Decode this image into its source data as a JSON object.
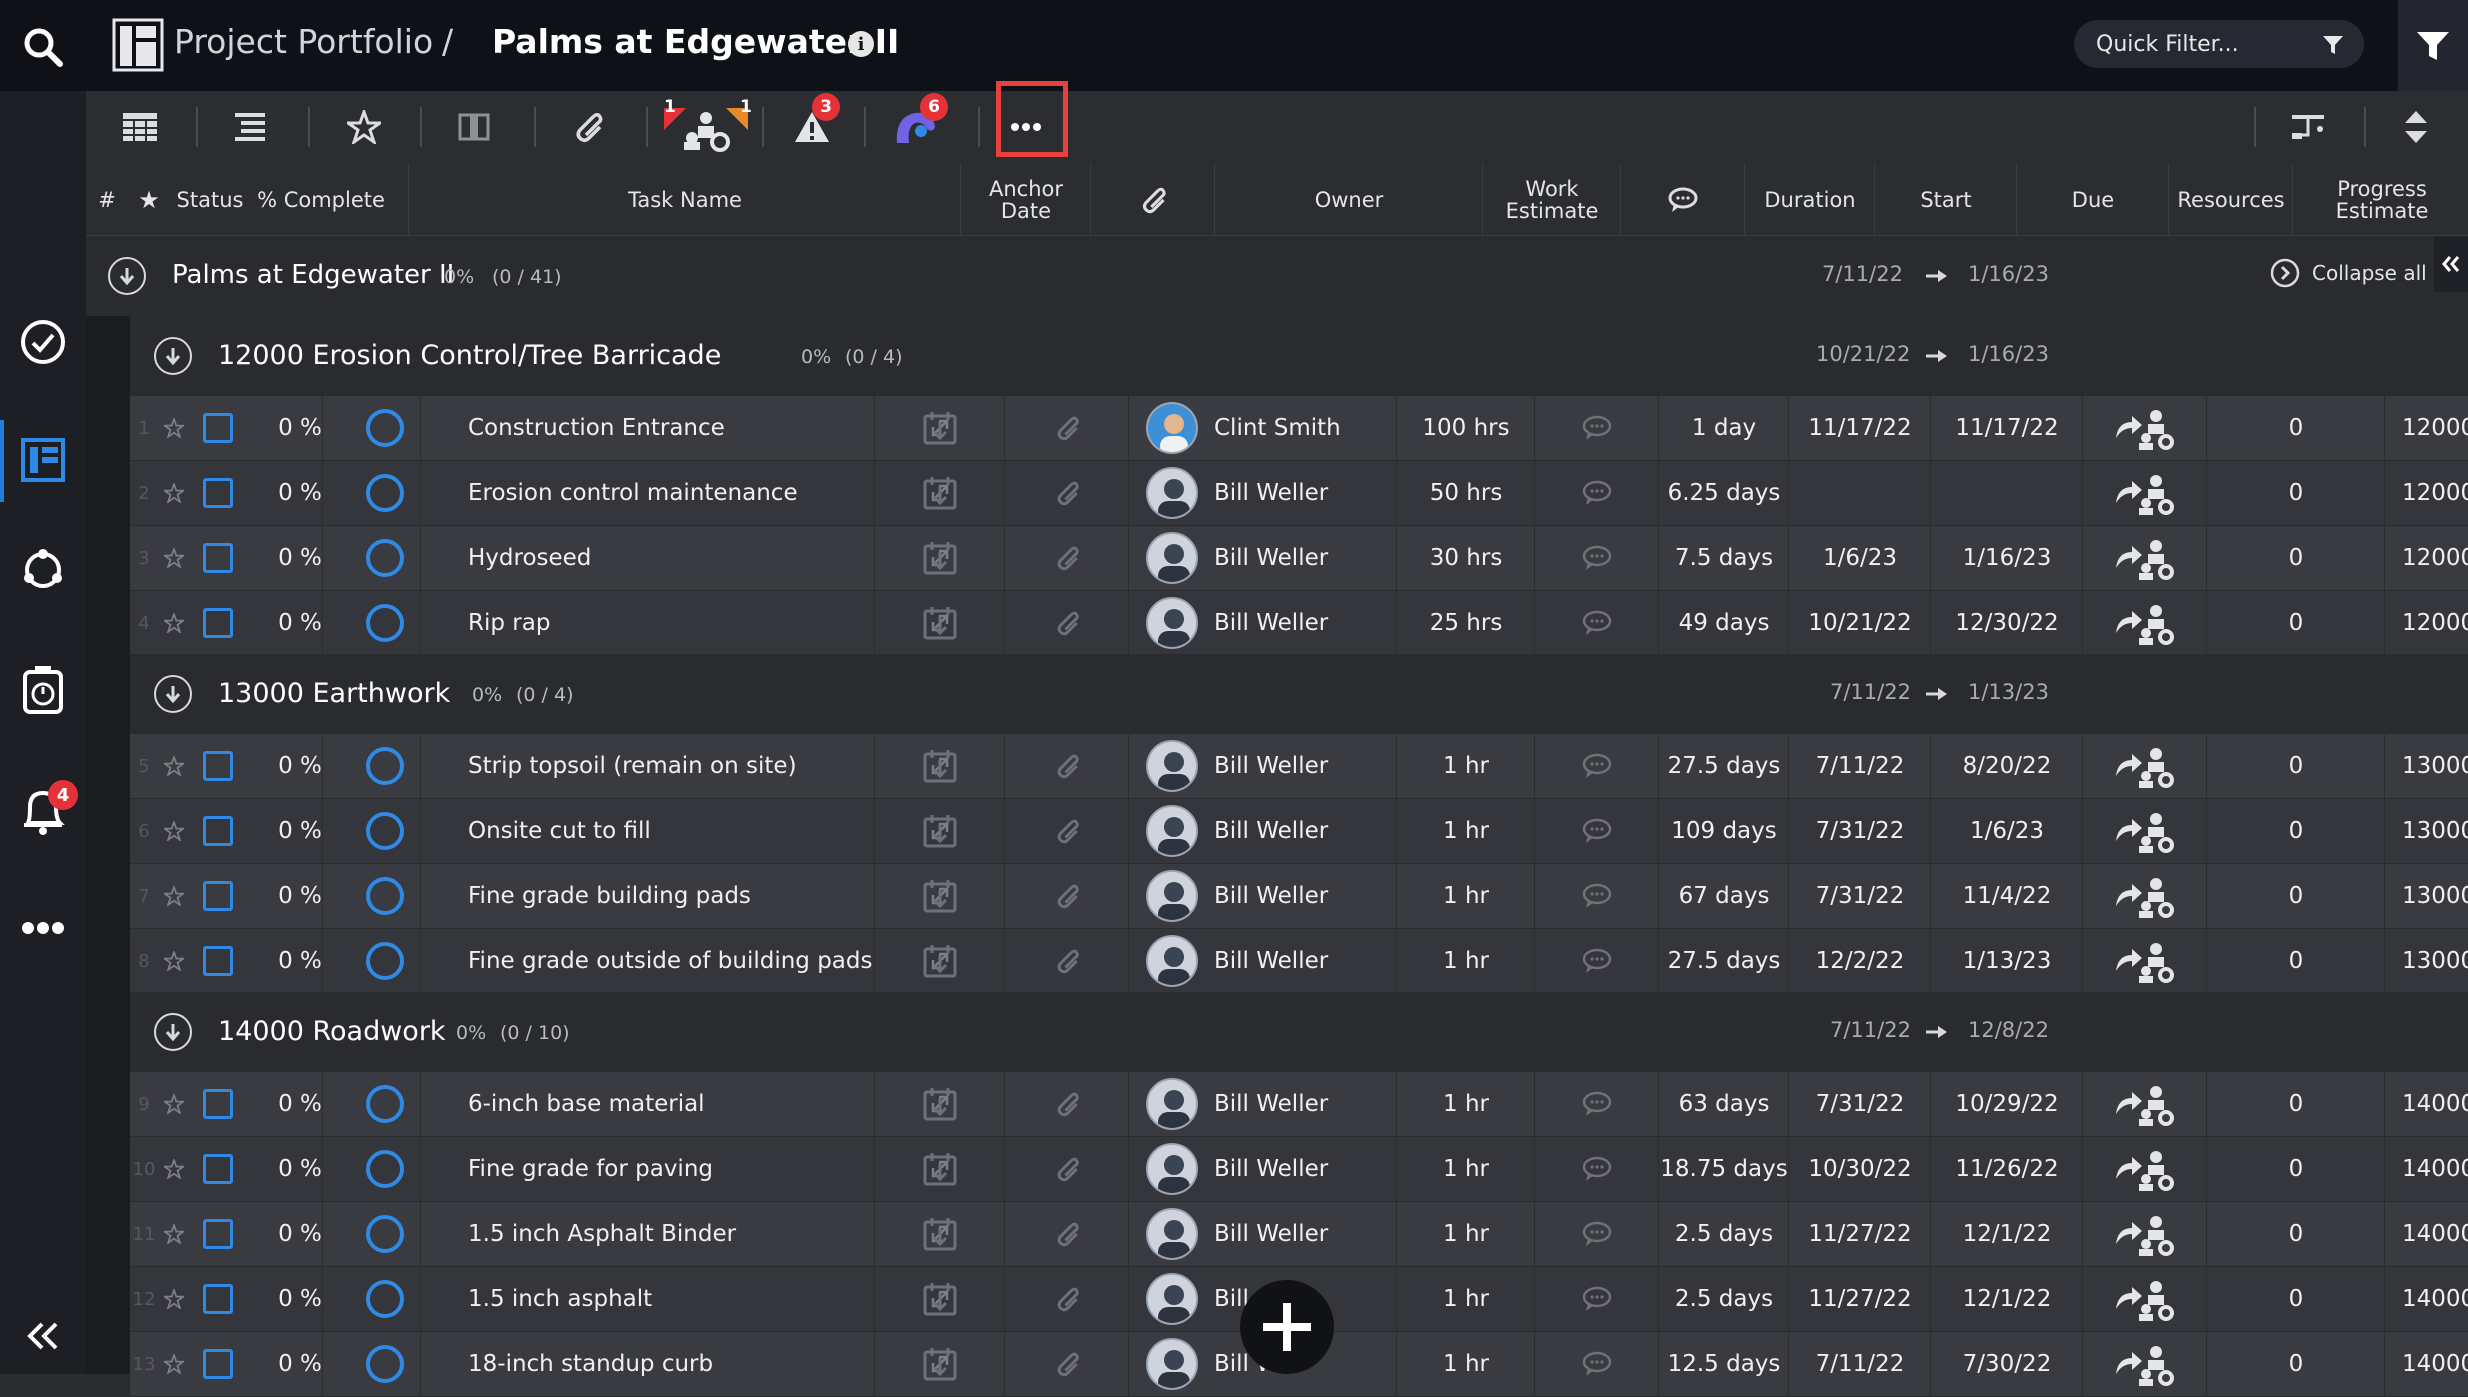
{
  "app": {
    "breadcrumb_parent": "Project Portfolio",
    "breadcrumb_sep": "/",
    "title": "Palms at Edgewater II",
    "quick_filter_placeholder": "Quick Filter..."
  },
  "left_rail": {
    "items": [
      "search-icon",
      "check-circle-icon",
      "portfolio-icon",
      "cycle-icon",
      "timer-icon",
      "bell-icon",
      "more-icon",
      "collapse-left-icon"
    ],
    "notifications_badge": "4"
  },
  "toolbar": {
    "tool1_badge": "1",
    "tool2_badge": "1",
    "alert_badge": "3",
    "logo_badge": "6"
  },
  "columns": {
    "num": "#",
    "star": "★",
    "status": "Status",
    "pct": "% Complete",
    "task": "Task Name",
    "anchor_1": "Anchor",
    "anchor_2": "Date",
    "owner": "Owner",
    "work_1": "Work",
    "work_2": "Estimate",
    "duration": "Duration",
    "start": "Start",
    "due": "Due",
    "resources": "Resources",
    "progress_1": "Progress",
    "progress_2": "Estimate"
  },
  "project": {
    "name": "Palms at Edgewater II",
    "pct": "0%",
    "count": "(0 / 41)",
    "start": "7/11/22",
    "due": "1/16/23",
    "collapse_label": "Collapse all"
  },
  "groups": [
    {
      "name": "12000 Erosion Control/Tree Barricade",
      "pct": "0%",
      "count": "(0 / 4)",
      "start": "10/21/22",
      "due": "1/16/23"
    },
    {
      "name": "13000 Earthwork",
      "pct": "0%",
      "count": "(0 / 4)",
      "start": "7/11/22",
      "due": "1/13/23"
    },
    {
      "name": "14000 Roadwork",
      "pct": "0%",
      "count": "(0 / 10)",
      "start": "7/11/22",
      "due": "12/8/22"
    }
  ],
  "tasks": [
    {
      "num": "1",
      "pct": "0 %",
      "name": "Construction Entrance",
      "owner": "Clint Smith",
      "work": "100 hrs",
      "duration": "1 day",
      "start": "11/17/22",
      "due": "11/17/22",
      "progress": "0",
      "code": "12000"
    },
    {
      "num": "2",
      "pct": "0 %",
      "name": "Erosion control maintenance",
      "owner": "Bill Weller",
      "work": "50 hrs",
      "duration": "6.25 days",
      "start": "",
      "due": "",
      "progress": "0",
      "code": "12000"
    },
    {
      "num": "3",
      "pct": "0 %",
      "name": "Hydroseed",
      "owner": "Bill Weller",
      "work": "30 hrs",
      "duration": "7.5 days",
      "start": "1/6/23",
      "due": "1/16/23",
      "progress": "0",
      "code": "12000"
    },
    {
      "num": "4",
      "pct": "0 %",
      "name": "Rip rap",
      "owner": "Bill Weller",
      "work": "25 hrs",
      "duration": "49 days",
      "start": "10/21/22",
      "due": "12/30/22",
      "progress": "0",
      "code": "12000"
    },
    {
      "num": "5",
      "pct": "0 %",
      "name": "Strip topsoil (remain on site)",
      "owner": "Bill Weller",
      "work": "1 hr",
      "duration": "27.5 days",
      "start": "7/11/22",
      "due": "8/20/22",
      "progress": "0",
      "code": "13000"
    },
    {
      "num": "6",
      "pct": "0 %",
      "name": "Onsite cut to fill",
      "owner": "Bill Weller",
      "work": "1 hr",
      "duration": "109 days",
      "start": "7/31/22",
      "due": "1/6/23",
      "progress": "0",
      "code": "13000"
    },
    {
      "num": "7",
      "pct": "0 %",
      "name": "Fine grade building pads",
      "owner": "Bill Weller",
      "work": "1 hr",
      "duration": "67 days",
      "start": "7/31/22",
      "due": "11/4/22",
      "progress": "0",
      "code": "13000"
    },
    {
      "num": "8",
      "pct": "0 %",
      "name": "Fine grade outside of building pads",
      "owner": "Bill Weller",
      "work": "1 hr",
      "duration": "27.5 days",
      "start": "12/2/22",
      "due": "1/13/23",
      "progress": "0",
      "code": "13000"
    },
    {
      "num": "9",
      "pct": "0 %",
      "name": "6-inch base material",
      "owner": "Bill Weller",
      "work": "1 hr",
      "duration": "63 days",
      "start": "7/31/22",
      "due": "10/29/22",
      "progress": "0",
      "code": "14000"
    },
    {
      "num": "10",
      "pct": "0 %",
      "name": "Fine grade for paving",
      "owner": "Bill Weller",
      "work": "1 hr",
      "duration": "18.75 days",
      "start": "10/30/22",
      "due": "11/26/22",
      "progress": "0",
      "code": "14000"
    },
    {
      "num": "11",
      "pct": "0 %",
      "name": "1.5 inch Asphalt Binder",
      "owner": "Bill Weller",
      "work": "1 hr",
      "duration": "2.5 days",
      "start": "11/27/22",
      "due": "12/1/22",
      "progress": "0",
      "code": "14000"
    },
    {
      "num": "12",
      "pct": "0 %",
      "name": "1.5 inch asphalt",
      "owner": "Bill",
      "work": "1 hr",
      "duration": "2.5 days",
      "start": "11/27/22",
      "due": "12/1/22",
      "progress": "0",
      "code": "14000"
    },
    {
      "num": "13",
      "pct": "0 %",
      "name": "18-inch standup curb",
      "owner": "Bill W...",
      "work": "1 hr",
      "duration": "12.5 days",
      "start": "7/11/22",
      "due": "7/30/22",
      "progress": "0",
      "code": "14000"
    }
  ],
  "colors": {
    "accent": "#2f8ae6",
    "badge": "#e53238",
    "highlight": "#e8413d"
  }
}
